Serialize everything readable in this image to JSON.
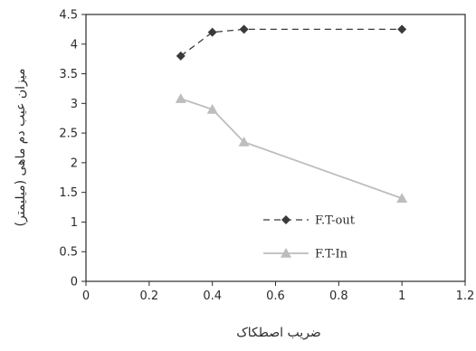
{
  "chart_data": {
    "type": "line",
    "xlabel": "ضریب اصطکاک",
    "ylabel": "میزان عیب دم ماهی (میلیمتر)",
    "xlim": [
      0,
      1.2
    ],
    "ylim": [
      0,
      4.5
    ],
    "x_ticks": [
      "0",
      "0.2",
      "0.4",
      "0.6",
      "0.8",
      "1",
      "1.2"
    ],
    "y_ticks": [
      "0",
      "0.5",
      "1",
      "1.5",
      "2",
      "2.5",
      "3",
      "3.5",
      "4",
      "4.5"
    ],
    "grid": false,
    "legend_position": "bottom-right",
    "series": [
      {
        "name": "F.T-out",
        "x": [
          0.3,
          0.4,
          0.5,
          1.0
        ],
        "y": [
          3.8,
          4.2,
          4.25,
          4.25
        ],
        "color": "#3a3a3a",
        "line_style": "dashed",
        "marker": "diamond"
      },
      {
        "name": "F.T-In",
        "x": [
          0.3,
          0.4,
          0.5,
          1.0
        ],
        "y": [
          3.08,
          2.9,
          2.35,
          1.4
        ],
        "color": "#bdbdbd",
        "line_style": "solid",
        "marker": "triangle"
      }
    ]
  }
}
